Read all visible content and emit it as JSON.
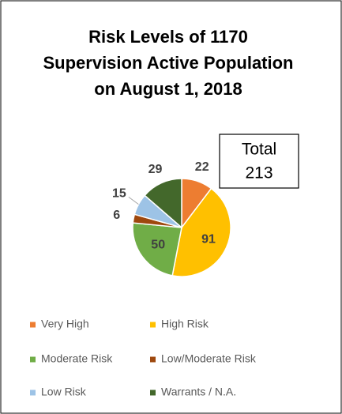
{
  "chart_data": {
    "type": "pie",
    "title": "Risk Levels of 1170 Supervision Active Population on August 1, 2018",
    "categories": [
      "Very High",
      "High Risk",
      "Moderate Risk",
      "Low/Moderate Risk",
      "Low Risk",
      "Warrants / N.A."
    ],
    "values": [
      22,
      91,
      50,
      6,
      15,
      29
    ],
    "colors": [
      "#ed7d31",
      "#ffc000",
      "#70ad47",
      "#9e480e",
      "#9dc3e6",
      "#43682b"
    ],
    "total_label": "Total",
    "total": 213,
    "legend": "bottom"
  }
}
